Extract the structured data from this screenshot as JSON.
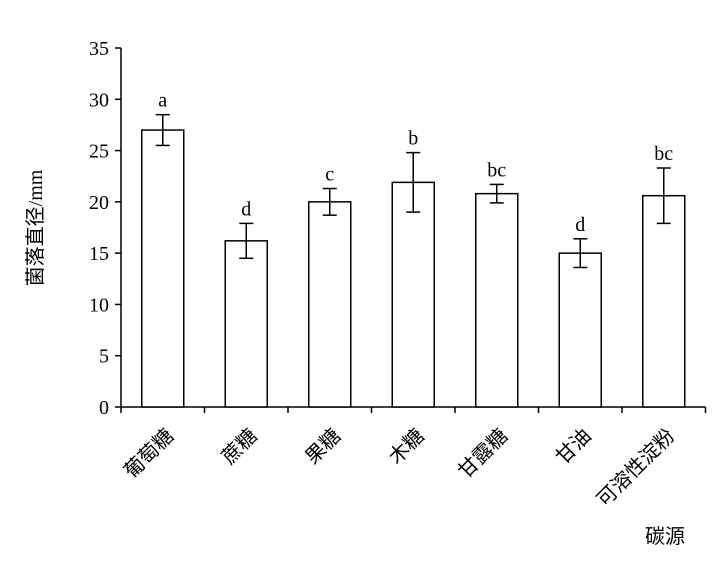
{
  "chart_data": {
    "type": "bar",
    "categories": [
      "葡萄糖",
      "蔗糖",
      "果糖",
      "木糖",
      "甘露糖",
      "甘油",
      "可溶性淀粉"
    ],
    "values": [
      27.0,
      16.2,
      20.0,
      21.9,
      20.8,
      15.0,
      20.6
    ],
    "errors": [
      1.5,
      1.7,
      1.3,
      2.9,
      0.9,
      1.4,
      2.7
    ],
    "significance": [
      "a",
      "d",
      "c",
      "b",
      "bc",
      "d",
      "bc"
    ],
    "color": "#ffffff",
    "ylabel": "菌落直径/mm",
    "xlabel": "碳源",
    "ylim": [
      0,
      35
    ],
    "yticks": [
      0,
      5,
      10,
      15,
      20,
      25,
      30,
      35
    ],
    "grid": false
  }
}
